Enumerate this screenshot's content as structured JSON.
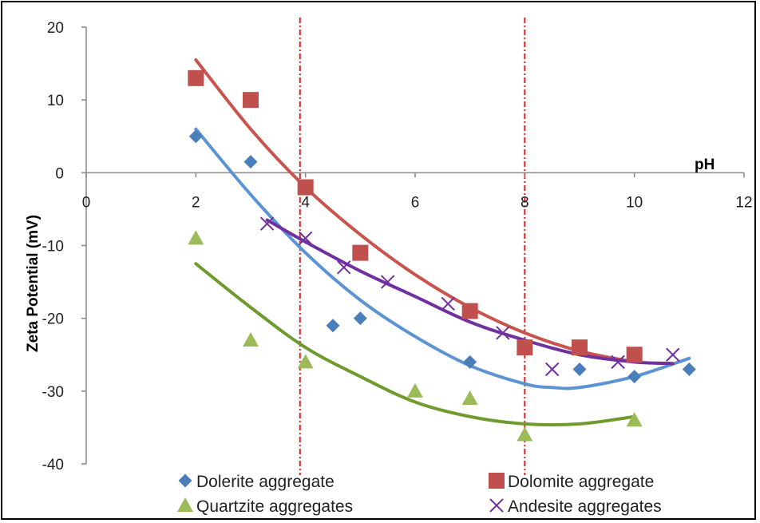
{
  "chart_data": {
    "type": "scatter",
    "xlabel": "pH",
    "ylabel": "Zeta Potential (mV)",
    "xlim": [
      0,
      12
    ],
    "ylim": [
      -40,
      20
    ],
    "x_ticks": [
      "0",
      "2",
      "4",
      "6",
      "8",
      "10",
      "12"
    ],
    "y_ticks": [
      "20",
      "10",
      "0",
      "-10",
      "-20",
      "-30",
      "-40"
    ],
    "grid": false,
    "legend_position": "bottom",
    "reference_lines_x": [
      3.9,
      8.0
    ],
    "reference_line_color": "#e02020",
    "series": [
      {
        "name": "Dolerite aggregate",
        "marker": "diamond",
        "color": "#4a7ebb",
        "points": [
          [
            2,
            5
          ],
          [
            3,
            1.5
          ],
          [
            4.5,
            -21
          ],
          [
            5,
            -20
          ],
          [
            7,
            -26
          ],
          [
            9,
            -27
          ],
          [
            10,
            -28
          ],
          [
            11,
            -27
          ]
        ],
        "trend": {
          "x_range": [
            2,
            11
          ],
          "points": [
            [
              2,
              6
            ],
            [
              3,
              -3
            ],
            [
              4,
              -11
            ],
            [
              5,
              -17.5
            ],
            [
              6,
              -22.5
            ],
            [
              7,
              -26.5
            ],
            [
              8,
              -29
            ],
            [
              8.5,
              -29.5
            ],
            [
              9,
              -29.5
            ],
            [
              10,
              -28
            ],
            [
              11,
              -25.5
            ]
          ]
        }
      },
      {
        "name": "Dolomite aggregate",
        "marker": "square",
        "color": "#c0504d",
        "points": [
          [
            2,
            13
          ],
          [
            3,
            10
          ],
          [
            4,
            -2
          ],
          [
            5,
            -11
          ],
          [
            7,
            -19
          ],
          [
            8,
            -24
          ],
          [
            9,
            -24
          ],
          [
            10,
            -25
          ]
        ],
        "trend": {
          "x_range": [
            2,
            10
          ],
          "points": [
            [
              2,
              15.5
            ],
            [
              3,
              6
            ],
            [
              4,
              -2
            ],
            [
              5,
              -8.5
            ],
            [
              6,
              -14
            ],
            [
              7,
              -18.5
            ],
            [
              8,
              -22
            ],
            [
              9,
              -24.5
            ],
            [
              10,
              -26
            ]
          ]
        }
      },
      {
        "name": "Quartzite aggregates",
        "marker": "triangle",
        "color": "#9bbb59",
        "points": [
          [
            2,
            -9
          ],
          [
            3,
            -23
          ],
          [
            4,
            -26
          ],
          [
            6,
            -30
          ],
          [
            7,
            -31
          ],
          [
            8,
            -36
          ],
          [
            10,
            -34
          ]
        ],
        "trend": {
          "x_range": [
            2,
            10
          ],
          "points": [
            [
              2,
              -12.5
            ],
            [
              3,
              -18.5
            ],
            [
              4,
              -24
            ],
            [
              5,
              -28
            ],
            [
              6,
              -31.5
            ],
            [
              7,
              -33.5
            ],
            [
              8,
              -34.5
            ],
            [
              9,
              -34.5
            ],
            [
              10,
              -33.5
            ]
          ]
        }
      },
      {
        "name": "Andesite aggregates",
        "marker": "x",
        "color": "#7030a0",
        "points": [
          [
            3.3,
            -7
          ],
          [
            4,
            -9
          ],
          [
            4.7,
            -13
          ],
          [
            5.5,
            -15
          ],
          [
            6.6,
            -18
          ],
          [
            7.6,
            -22
          ],
          [
            8.5,
            -27
          ],
          [
            9.7,
            -26
          ],
          [
            10.7,
            -25
          ]
        ],
        "trend": {
          "x_range": [
            3.3,
            10.7
          ],
          "points": [
            [
              3.3,
              -6.5
            ],
            [
              4,
              -9.5
            ],
            [
              5,
              -13.5
            ],
            [
              6,
              -17
            ],
            [
              7,
              -20.5
            ],
            [
              8,
              -23
            ],
            [
              9,
              -25
            ],
            [
              10,
              -26
            ],
            [
              10.7,
              -26.2
            ]
          ]
        }
      }
    ]
  }
}
